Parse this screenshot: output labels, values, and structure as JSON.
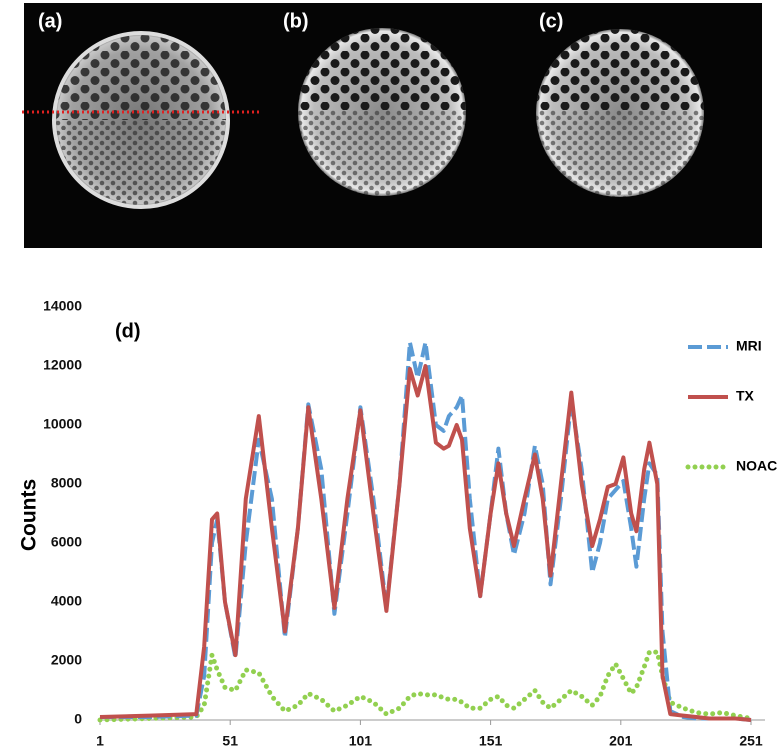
{
  "images": {
    "labels": [
      "(a)",
      "(b)",
      "(c)"
    ]
  },
  "chart_data": {
    "type": "line",
    "panel_label": "(d)",
    "ylabel": "Counts",
    "x": [
      1,
      20,
      38,
      41,
      44,
      46,
      49,
      53,
      57,
      62,
      67,
      72,
      77,
      81,
      86,
      91,
      96,
      101,
      106,
      111,
      116,
      120,
      123,
      126,
      130,
      133,
      135,
      138,
      140,
      143,
      147,
      151,
      154,
      157,
      160,
      164,
      168,
      171,
      174,
      178,
      182,
      186,
      190,
      193,
      196,
      199,
      202,
      205,
      207,
      210,
      212,
      215,
      217,
      220,
      225,
      230,
      235,
      240,
      245,
      251
    ],
    "series": [
      {
        "name": "MRI",
        "color": "#5b9bd5",
        "style": "dashed",
        "values": [
          100,
          100,
          150,
          1500,
          6000,
          6800,
          4000,
          2100,
          6000,
          9500,
          7500,
          2800,
          6500,
          10700,
          8500,
          3600,
          7000,
          10600,
          7500,
          3800,
          8000,
          12800,
          11600,
          12800,
          10000,
          9800,
          10300,
          10600,
          11000,
          7500,
          4200,
          7000,
          9200,
          7000,
          5600,
          7000,
          9300,
          8000,
          4600,
          7500,
          10800,
          8500,
          5000,
          6000,
          7500,
          7800,
          8100,
          6500,
          5200,
          7500,
          8700,
          8300,
          3000,
          300,
          100,
          50,
          50,
          50,
          50,
          0
        ]
      },
      {
        "name": "TX",
        "color": "#c0504d",
        "style": "solid",
        "values": [
          100,
          150,
          200,
          2500,
          6800,
          7000,
          4000,
          2200,
          7500,
          10300,
          6500,
          3000,
          6500,
          10600,
          7500,
          3800,
          7500,
          10500,
          7000,
          3700,
          8000,
          11900,
          11000,
          12000,
          9400,
          9200,
          9300,
          10000,
          9500,
          6500,
          4200,
          7000,
          8700,
          7000,
          5900,
          7500,
          9000,
          7500,
          4900,
          8000,
          11100,
          8000,
          5900,
          6800,
          7900,
          8000,
          8900,
          7000,
          6400,
          8500,
          9400,
          8000,
          1500,
          200,
          150,
          100,
          50,
          50,
          50,
          0
        ]
      },
      {
        "name": "NOAC",
        "color": "#92d050",
        "style": "dotted",
        "values": [
          0,
          50,
          100,
          500,
          2200,
          1700,
          1100,
          1000,
          1700,
          1600,
          800,
          300,
          500,
          900,
          700,
          300,
          500,
          800,
          600,
          200,
          400,
          800,
          900,
          850,
          850,
          750,
          700,
          700,
          600,
          400,
          400,
          700,
          800,
          500,
          400,
          700,
          1000,
          600,
          400,
          700,
          1000,
          800,
          500,
          800,
          1500,
          1900,
          1400,
          900,
          1100,
          1800,
          2300,
          2300,
          1500,
          600,
          400,
          250,
          200,
          250,
          150,
          50
        ]
      }
    ],
    "xlim": [
      1,
      251
    ],
    "xticks": [
      1,
      51,
      101,
      151,
      201,
      251
    ],
    "ylim": [
      0,
      14000
    ],
    "yticks": [
      0,
      2000,
      4000,
      6000,
      8000,
      10000,
      12000,
      14000
    ],
    "grid": false,
    "legend": "right"
  }
}
